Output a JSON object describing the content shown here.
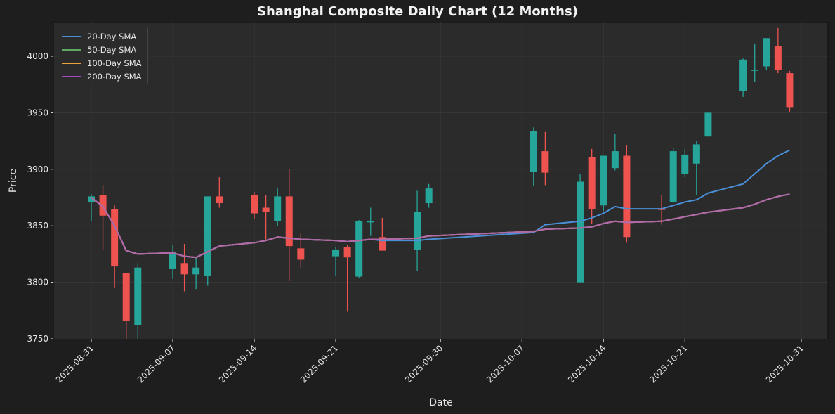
{
  "chart_data": {
    "type": "candlestick",
    "title": "Shanghai Composite Daily Chart (12 Months)",
    "xlabel": "Date",
    "ylabel": "Price",
    "ylim": [
      3750,
      4028
    ],
    "yticks": [
      3750,
      3800,
      3850,
      3900,
      3950,
      4000
    ],
    "xticks": [
      "2025-08-31",
      "2025-09-07",
      "2025-09-14",
      "2025-09-21",
      "2025-09-30",
      "2025-10-07",
      "2025-10-14",
      "2025-10-21",
      "2025-10-31"
    ],
    "grid": true,
    "legend_position": "upper left",
    "colors": {
      "up": "#26a69a",
      "down": "#ef5350",
      "sma20": "#4a90d9",
      "sma50": "#5fa860",
      "sma100": "#e8a23a",
      "sma200": "#a24dbf",
      "figure_bg": "#1e1e1e",
      "axes_bg": "#2b2b2b"
    },
    "legend": [
      "20-Day SMA",
      "50-Day SMA",
      "100-Day SMA",
      "200-Day SMA"
    ],
    "candles": [
      {
        "date": "2025-08-31",
        "open": 3871,
        "high": 3878,
        "low": 3854,
        "close": 3876
      },
      {
        "date": "2025-09-01",
        "open": 3877,
        "high": 3886,
        "low": 3829,
        "close": 3859
      },
      {
        "date": "2025-09-02",
        "open": 3865,
        "high": 3868,
        "low": 3795,
        "close": 3814
      },
      {
        "date": "2025-09-03",
        "open": 3808,
        "high": 3808,
        "low": 3750,
        "close": 3766
      },
      {
        "date": "2025-09-04",
        "open": 3762,
        "high": 3817,
        "low": 3750,
        "close": 3813
      },
      {
        "date": "2025-09-07",
        "open": 3812,
        "high": 3833,
        "low": 3803,
        "close": 3827
      },
      {
        "date": "2025-09-08",
        "open": 3817,
        "high": 3834,
        "low": 3792,
        "close": 3807
      },
      {
        "date": "2025-09-09",
        "open": 3807,
        "high": 3822,
        "low": 3794,
        "close": 3813
      },
      {
        "date": "2025-09-10",
        "open": 3806,
        "high": 3876,
        "low": 3797,
        "close": 3876
      },
      {
        "date": "2025-09-11",
        "open": 3876,
        "high": 3893,
        "low": 3866,
        "close": 3870
      },
      {
        "date": "2025-09-14",
        "open": 3877,
        "high": 3880,
        "low": 3856,
        "close": 3861
      },
      {
        "date": "2025-09-15",
        "open": 3866,
        "high": 3877,
        "low": 3838,
        "close": 3862
      },
      {
        "date": "2025-09-16",
        "open": 3854,
        "high": 3883,
        "low": 3850,
        "close": 3876
      },
      {
        "date": "2025-09-17",
        "open": 3876,
        "high": 3900,
        "low": 3801,
        "close": 3832
      },
      {
        "date": "2025-09-18",
        "open": 3830,
        "high": 3843,
        "low": 3813,
        "close": 3820
      },
      {
        "date": "2025-09-21",
        "open": 3823,
        "high": 3831,
        "low": 3806,
        "close": 3829
      },
      {
        "date": "2025-09-22",
        "open": 3831,
        "high": 3833,
        "low": 3774,
        "close": 3822
      },
      {
        "date": "2025-09-23",
        "open": 3805,
        "high": 3855,
        "low": 3804,
        "close": 3854
      },
      {
        "date": "2025-09-24",
        "open": 3853,
        "high": 3866,
        "low": 3841,
        "close": 3854
      },
      {
        "date": "2025-09-25",
        "open": 3840,
        "high": 3857,
        "low": 3828,
        "close": 3828
      },
      {
        "date": "2025-09-28",
        "open": 3829,
        "high": 3881,
        "low": 3810,
        "close": 3862
      },
      {
        "date": "2025-09-29",
        "open": 3870,
        "high": 3887,
        "low": 3866,
        "close": 3883
      },
      {
        "date": "2025-10-08",
        "open": 3898,
        "high": 3937,
        "low": 3885,
        "close": 3934
      },
      {
        "date": "2025-10-09",
        "open": 3916,
        "high": 3933,
        "low": 3886,
        "close": 3897
      },
      {
        "date": "2025-10-12",
        "open": 3800,
        "high": 3896,
        "low": 3800,
        "close": 3889
      },
      {
        "date": "2025-10-13",
        "open": 3911,
        "high": 3918,
        "low": 3852,
        "close": 3865
      },
      {
        "date": "2025-10-14",
        "open": 3868,
        "high": 3912,
        "low": 3863,
        "close": 3912
      },
      {
        "date": "2025-10-15",
        "open": 3901,
        "high": 3931,
        "low": 3899,
        "close": 3916
      },
      {
        "date": "2025-10-16",
        "open": 3912,
        "high": 3921,
        "low": 3835,
        "close": 3840
      },
      {
        "date": "2025-10-19",
        "open": 3865,
        "high": 3877,
        "low": 3851,
        "close": 3864
      },
      {
        "date": "2025-10-20",
        "open": 3871,
        "high": 3919,
        "low": 3870,
        "close": 3916
      },
      {
        "date": "2025-10-21",
        "open": 3896,
        "high": 3918,
        "low": 3893,
        "close": 3913
      },
      {
        "date": "2025-10-22",
        "open": 3905,
        "high": 3925,
        "low": 3877,
        "close": 3922
      },
      {
        "date": "2025-10-23",
        "open": 3929,
        "high": 3950,
        "low": 3929,
        "close": 3950
      },
      {
        "date": "2025-10-26",
        "open": 3969,
        "high": 3998,
        "low": 3964,
        "close": 3997
      },
      {
        "date": "2025-10-27",
        "open": 3988,
        "high": 4011,
        "low": 3977,
        "close": 3988
      },
      {
        "date": "2025-10-28",
        "open": 3991,
        "high": 4016,
        "low": 3988,
        "close": 4016
      },
      {
        "date": "2025-10-29",
        "open": 4009,
        "high": 4025,
        "low": 3985,
        "close": 3988
      },
      {
        "date": "2025-10-30",
        "open": 3985,
        "high": 3987,
        "low": 3951,
        "close": 3955
      }
    ],
    "sma20": [
      {
        "date": "2025-08-31",
        "value": 3875
      },
      {
        "date": "2025-09-01",
        "value": 3867
      },
      {
        "date": "2025-09-02",
        "value": 3850
      },
      {
        "date": "2025-09-03",
        "value": 3828
      },
      {
        "date": "2025-09-04",
        "value": 3825
      },
      {
        "date": "2025-09-07",
        "value": 3826
      },
      {
        "date": "2025-09-08",
        "value": 3823
      },
      {
        "date": "2025-09-09",
        "value": 3822
      },
      {
        "date": "2025-09-10",
        "value": 3827
      },
      {
        "date": "2025-09-11",
        "value": 3832
      },
      {
        "date": "2025-09-14",
        "value": 3835
      },
      {
        "date": "2025-09-15",
        "value": 3837
      },
      {
        "date": "2025-09-16",
        "value": 3840
      },
      {
        "date": "2025-09-17",
        "value": 3839
      },
      {
        "date": "2025-09-18",
        "value": 3838
      },
      {
        "date": "2025-09-21",
        "value": 3837
      },
      {
        "date": "2025-09-22",
        "value": 3836
      },
      {
        "date": "2025-09-23",
        "value": 3837
      },
      {
        "date": "2025-09-24",
        "value": 3838
      },
      {
        "date": "2025-09-25",
        "value": 3837
      },
      {
        "date": "2025-09-28",
        "value": 3837
      },
      {
        "date": "2025-09-29",
        "value": 3838
      },
      {
        "date": "2025-10-08",
        "value": 3844
      },
      {
        "date": "2025-10-09",
        "value": 3851
      },
      {
        "date": "2025-10-12",
        "value": 3854
      },
      {
        "date": "2025-10-13",
        "value": 3857
      },
      {
        "date": "2025-10-14",
        "value": 3861
      },
      {
        "date": "2025-10-15",
        "value": 3867
      },
      {
        "date": "2025-10-16",
        "value": 3865
      },
      {
        "date": "2025-10-19",
        "value": 3865
      },
      {
        "date": "2025-10-20",
        "value": 3868
      },
      {
        "date": "2025-10-21",
        "value": 3871
      },
      {
        "date": "2025-10-22",
        "value": 3873
      },
      {
        "date": "2025-10-23",
        "value": 3879
      },
      {
        "date": "2025-10-26",
        "value": 3887
      },
      {
        "date": "2025-10-27",
        "value": 3896
      },
      {
        "date": "2025-10-28",
        "value": 3905
      },
      {
        "date": "2025-10-29",
        "value": 3912
      },
      {
        "date": "2025-10-30",
        "value": 3917
      }
    ],
    "sma200": [
      {
        "date": "2025-08-31",
        "value": 3875
      },
      {
        "date": "2025-09-01",
        "value": 3867
      },
      {
        "date": "2025-09-02",
        "value": 3850
      },
      {
        "date": "2025-09-03",
        "value": 3828
      },
      {
        "date": "2025-09-04",
        "value": 3825
      },
      {
        "date": "2025-09-07",
        "value": 3826
      },
      {
        "date": "2025-09-08",
        "value": 3823
      },
      {
        "date": "2025-09-09",
        "value": 3822
      },
      {
        "date": "2025-09-10",
        "value": 3827
      },
      {
        "date": "2025-09-11",
        "value": 3832
      },
      {
        "date": "2025-09-14",
        "value": 3835
      },
      {
        "date": "2025-09-15",
        "value": 3837
      },
      {
        "date": "2025-09-16",
        "value": 3840
      },
      {
        "date": "2025-09-17",
        "value": 3839
      },
      {
        "date": "2025-09-18",
        "value": 3838
      },
      {
        "date": "2025-09-21",
        "value": 3837
      },
      {
        "date": "2025-09-22",
        "value": 3836
      },
      {
        "date": "2025-09-23",
        "value": 3837
      },
      {
        "date": "2025-09-24",
        "value": 3838
      },
      {
        "date": "2025-09-25",
        "value": 3838
      },
      {
        "date": "2025-09-28",
        "value": 3839
      },
      {
        "date": "2025-09-29",
        "value": 3841
      },
      {
        "date": "2025-10-08",
        "value": 3845
      },
      {
        "date": "2025-10-09",
        "value": 3847
      },
      {
        "date": "2025-10-12",
        "value": 3848
      },
      {
        "date": "2025-10-13",
        "value": 3849
      },
      {
        "date": "2025-10-14",
        "value": 3852
      },
      {
        "date": "2025-10-15",
        "value": 3854
      },
      {
        "date": "2025-10-16",
        "value": 3853
      },
      {
        "date": "2025-10-19",
        "value": 3854
      },
      {
        "date": "2025-10-20",
        "value": 3856
      },
      {
        "date": "2025-10-21",
        "value": 3858
      },
      {
        "date": "2025-10-22",
        "value": 3860
      },
      {
        "date": "2025-10-23",
        "value": 3862
      },
      {
        "date": "2025-10-26",
        "value": 3866
      },
      {
        "date": "2025-10-27",
        "value": 3869
      },
      {
        "date": "2025-10-28",
        "value": 3873
      },
      {
        "date": "2025-10-29",
        "value": 3876
      },
      {
        "date": "2025-10-30",
        "value": 3878
      }
    ]
  }
}
